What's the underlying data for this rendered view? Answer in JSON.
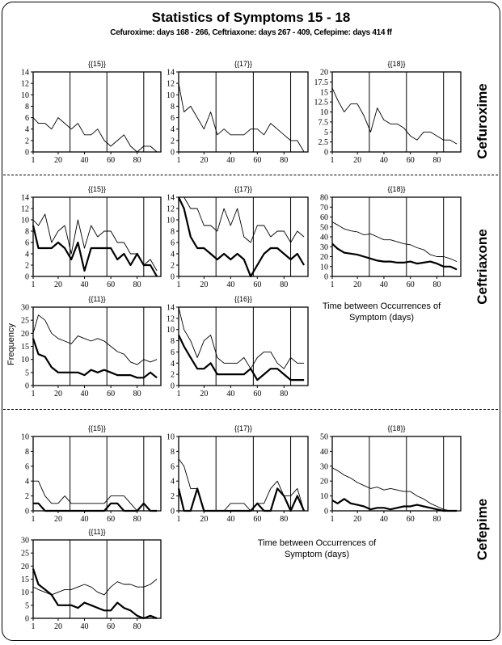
{
  "title": "Statistics of Symptoms 15 - 18",
  "subtitle": "Cefuroxime: days 168 - 266, Ceftriaxone: days 267 - 409, Cefepime: days 414 ff",
  "groups": [
    "Cefuroxime",
    "Ceftriaxone",
    "Cefepime"
  ],
  "ylabel": "Frequency",
  "xlabel_line1": "Time between Occurrences of",
  "xlabel_line2": "Symptom (days)",
  "chart_data": [
    {
      "type": "line",
      "group": "Cefuroxime",
      "title": "{{15}}",
      "xlim": [
        1,
        98
      ],
      "xticks": [
        1,
        20,
        40,
        60,
        80
      ],
      "vlines": [
        29,
        57,
        85
      ],
      "ylim": [
        0,
        14
      ],
      "yticks": [
        "0",
        "2",
        "4",
        "6",
        "8",
        "10",
        "12",
        "14"
      ],
      "x": [
        1,
        5,
        10,
        15,
        20,
        25,
        30,
        35,
        40,
        45,
        50,
        55,
        60,
        65,
        70,
        75,
        80,
        85,
        90,
        95
      ],
      "series": [
        {
          "style": "thin",
          "values": [
            6,
            5,
            5,
            4,
            6,
            5,
            4,
            5,
            3,
            3,
            4,
            2,
            1,
            2,
            3,
            1,
            0,
            1,
            1,
            0
          ]
        }
      ]
    },
    {
      "type": "line",
      "group": "Cefuroxime",
      "title": "{{17}}",
      "xlim": [
        1,
        98
      ],
      "xticks": [
        1,
        20,
        40,
        60,
        80
      ],
      "vlines": [
        29,
        57,
        85
      ],
      "ylim": [
        0,
        14
      ],
      "yticks": [
        "0",
        "2",
        "4",
        "6",
        "8",
        "10",
        "12",
        "14"
      ],
      "x": [
        1,
        5,
        10,
        15,
        20,
        25,
        30,
        35,
        40,
        45,
        50,
        55,
        60,
        65,
        70,
        75,
        80,
        85,
        90,
        95
      ],
      "series": [
        {
          "style": "thin",
          "values": [
            12,
            7,
            8,
            6,
            4,
            7,
            3,
            4,
            3,
            3,
            3,
            4,
            4,
            3,
            5,
            4,
            3,
            2,
            2,
            0
          ]
        }
      ]
    },
    {
      "type": "line",
      "group": "Cefuroxime",
      "title": "{{18}}",
      "xlim": [
        1,
        98
      ],
      "xticks": [
        1,
        20,
        40,
        60,
        80
      ],
      "vlines": [
        29,
        57,
        85
      ],
      "ylim": [
        0,
        20
      ],
      "yticks": [
        "0",
        "2.5",
        "5",
        "7.5",
        "10",
        "12.5",
        "15",
        "17.5",
        "20"
      ],
      "x": [
        1,
        5,
        10,
        15,
        20,
        25,
        30,
        35,
        40,
        45,
        50,
        55,
        60,
        65,
        70,
        75,
        80,
        85,
        90,
        95
      ],
      "series": [
        {
          "style": "thin",
          "values": [
            16,
            13,
            10,
            12,
            12,
            9,
            5,
            11,
            8,
            7,
            7,
            6,
            4,
            3,
            5,
            5,
            4,
            3,
            3,
            2
          ]
        }
      ]
    },
    {
      "type": "line",
      "group": "Ceftriaxone",
      "title": "{{15}}",
      "xlim": [
        1,
        98
      ],
      "xticks": [
        1,
        20,
        40,
        60,
        80
      ],
      "vlines": [
        29,
        57,
        85
      ],
      "ylim": [
        0,
        14
      ],
      "yticks": [
        "0",
        "2",
        "4",
        "6",
        "8",
        "10",
        "12",
        "14"
      ],
      "x": [
        1,
        5,
        10,
        15,
        20,
        25,
        30,
        35,
        40,
        45,
        50,
        55,
        60,
        65,
        70,
        75,
        80,
        85,
        90,
        95
      ],
      "series": [
        {
          "style": "thin",
          "values": [
            10,
            9,
            11,
            6,
            8,
            9,
            4,
            10,
            5,
            9,
            7,
            8,
            8,
            6,
            6,
            4,
            4,
            2,
            3,
            1
          ]
        },
        {
          "style": "thick",
          "values": [
            9,
            5,
            5,
            5,
            6,
            5,
            3,
            6,
            1,
            5,
            5,
            5,
            5,
            3,
            4,
            2,
            4,
            2,
            2,
            0
          ]
        }
      ]
    },
    {
      "type": "line",
      "group": "Ceftriaxone",
      "title": "{{17}}",
      "xlim": [
        1,
        98
      ],
      "xticks": [
        1,
        20,
        40,
        60,
        80
      ],
      "vlines": [
        29,
        57,
        85
      ],
      "ylim": [
        0,
        14
      ],
      "yticks": [
        "0",
        "2",
        "4",
        "6",
        "8",
        "10",
        "12",
        "14"
      ],
      "x": [
        1,
        5,
        10,
        15,
        20,
        25,
        30,
        35,
        40,
        45,
        50,
        55,
        60,
        65,
        70,
        75,
        80,
        85,
        90,
        95
      ],
      "series": [
        {
          "style": "thin",
          "values": [
            14,
            14,
            12,
            12,
            9,
            9,
            8,
            12,
            9,
            12,
            7,
            6,
            9,
            9,
            7,
            8,
            8,
            6,
            8,
            7
          ]
        },
        {
          "style": "thick",
          "values": [
            14,
            12,
            7,
            5,
            5,
            4,
            3,
            4,
            3,
            4,
            3,
            0,
            2,
            4,
            5,
            5,
            4,
            3,
            4,
            2
          ]
        }
      ]
    },
    {
      "type": "line",
      "group": "Ceftriaxone",
      "title": "{{18}}",
      "xlim": [
        1,
        98
      ],
      "xticks": [
        1,
        20,
        40,
        60,
        80
      ],
      "vlines": [
        29,
        57,
        85
      ],
      "ylim": [
        0,
        80
      ],
      "yticks": [
        "0",
        "10",
        "20",
        "30",
        "40",
        "50",
        "60",
        "70",
        "80"
      ],
      "x": [
        1,
        5,
        10,
        15,
        20,
        25,
        30,
        35,
        40,
        45,
        50,
        55,
        60,
        65,
        70,
        75,
        80,
        85,
        90,
        95
      ],
      "series": [
        {
          "style": "thin",
          "values": [
            55,
            52,
            48,
            46,
            45,
            42,
            43,
            40,
            37,
            37,
            35,
            33,
            32,
            29,
            27,
            22,
            20,
            20,
            18,
            15
          ]
        },
        {
          "style": "thick",
          "values": [
            33,
            28,
            24,
            23,
            22,
            20,
            18,
            16,
            15,
            15,
            14,
            14,
            15,
            13,
            14,
            15,
            13,
            10,
            10,
            7
          ]
        }
      ]
    },
    {
      "type": "line",
      "group": "Ceftriaxone",
      "title": "{{11}}",
      "xlim": [
        1,
        98
      ],
      "xticks": [
        1,
        20,
        40,
        60,
        80
      ],
      "vlines": [
        29,
        57,
        85
      ],
      "ylim": [
        0,
        30
      ],
      "yticks": [
        "0",
        "5",
        "10",
        "15",
        "20",
        "25",
        "30"
      ],
      "x": [
        1,
        5,
        10,
        15,
        20,
        25,
        30,
        35,
        40,
        45,
        50,
        55,
        60,
        65,
        70,
        75,
        80,
        85,
        90,
        95
      ],
      "series": [
        {
          "style": "thin",
          "values": [
            20,
            27,
            25,
            20,
            18,
            17,
            16,
            19,
            18,
            17,
            18,
            17,
            15,
            13,
            12,
            9,
            8,
            10,
            9,
            10
          ]
        },
        {
          "style": "thick",
          "values": [
            18,
            12,
            11,
            7,
            5,
            5,
            5,
            5,
            4,
            6,
            5,
            6,
            5,
            4,
            4,
            4,
            3,
            3,
            5,
            3
          ]
        }
      ]
    },
    {
      "type": "line",
      "group": "Ceftriaxone",
      "title": "{{16}}",
      "xlim": [
        1,
        98
      ],
      "xticks": [
        1,
        20,
        40,
        60,
        80
      ],
      "vlines": [
        29,
        57,
        85
      ],
      "ylim": [
        0,
        14
      ],
      "yticks": [
        "0",
        "2",
        "4",
        "6",
        "8",
        "10",
        "12",
        "14"
      ],
      "x": [
        1,
        5,
        10,
        15,
        20,
        25,
        30,
        35,
        40,
        45,
        50,
        55,
        60,
        65,
        70,
        75,
        80,
        85,
        90,
        95
      ],
      "series": [
        {
          "style": "thin",
          "values": [
            14,
            10,
            8,
            5,
            8,
            9,
            5,
            4,
            4,
            4,
            5,
            3,
            5,
            6,
            6,
            4,
            3,
            5,
            4,
            4
          ]
        },
        {
          "style": "thick",
          "values": [
            9,
            7,
            5,
            3,
            3,
            4,
            2,
            2,
            2,
            2,
            2,
            3,
            1,
            2,
            3,
            3,
            2,
            1,
            1,
            1
          ]
        }
      ]
    },
    {
      "type": "line",
      "group": "Cefepime",
      "title": "{{15}}",
      "xlim": [
        1,
        98
      ],
      "xticks": [
        1,
        20,
        40,
        60,
        80
      ],
      "vlines": [
        29,
        57,
        85
      ],
      "ylim": [
        0,
        10
      ],
      "yticks": [
        "0",
        "2",
        "4",
        "6",
        "8",
        "10"
      ],
      "x": [
        1,
        5,
        10,
        15,
        20,
        25,
        30,
        35,
        40,
        45,
        50,
        55,
        60,
        65,
        70,
        75,
        80,
        85,
        90,
        95
      ],
      "series": [
        {
          "style": "thin",
          "values": [
            4,
            4,
            2,
            1,
            1,
            2,
            1,
            1,
            1,
            1,
            1,
            1,
            2,
            2,
            2,
            1,
            0,
            0,
            0,
            0
          ]
        },
        {
          "style": "thick",
          "values": [
            1,
            1,
            0,
            0,
            0,
            0,
            0,
            0,
            0,
            0,
            0,
            0,
            1,
            1,
            0,
            0,
            0,
            1,
            0,
            0
          ]
        }
      ]
    },
    {
      "type": "line",
      "group": "Cefepime",
      "title": "{{17}}",
      "xlim": [
        1,
        98
      ],
      "xticks": [
        1,
        20,
        40,
        60,
        80
      ],
      "vlines": [
        29,
        57,
        85
      ],
      "ylim": [
        0,
        10
      ],
      "yticks": [
        "0",
        "2",
        "4",
        "6",
        "8",
        "10"
      ],
      "x": [
        1,
        5,
        10,
        15,
        20,
        25,
        30,
        35,
        40,
        45,
        50,
        55,
        60,
        65,
        70,
        75,
        80,
        85,
        90,
        95
      ],
      "series": [
        {
          "style": "thin",
          "values": [
            7,
            6,
            3,
            3,
            0,
            0,
            0,
            0,
            1,
            1,
            1,
            0,
            1,
            1,
            3,
            4,
            2,
            2,
            3,
            0
          ]
        },
        {
          "style": "thick",
          "values": [
            3,
            0,
            0,
            3,
            0,
            0,
            0,
            0,
            0,
            0,
            0,
            0,
            1,
            0,
            0,
            3,
            2,
            0,
            2,
            0
          ]
        }
      ]
    },
    {
      "type": "line",
      "group": "Cefepime",
      "title": "{{18}}",
      "xlim": [
        1,
        98
      ],
      "xticks": [
        1,
        20,
        40,
        60,
        80
      ],
      "vlines": [
        29,
        57,
        85
      ],
      "ylim": [
        0,
        50
      ],
      "yticks": [
        "0",
        "10",
        "20",
        "30",
        "40",
        "50"
      ],
      "x": [
        1,
        5,
        10,
        15,
        20,
        25,
        30,
        35,
        40,
        45,
        50,
        55,
        60,
        65,
        70,
        75,
        80,
        85,
        90,
        95
      ],
      "series": [
        {
          "style": "thin",
          "values": [
            29,
            27,
            24,
            22,
            19,
            17,
            15,
            16,
            14,
            15,
            14,
            13,
            13,
            10,
            8,
            5,
            3,
            1,
            0,
            0
          ]
        },
        {
          "style": "thick",
          "values": [
            7,
            5,
            8,
            5,
            4,
            3,
            1,
            2,
            2,
            1,
            2,
            3,
            3,
            4,
            3,
            2,
            1,
            0,
            0,
            0
          ]
        }
      ]
    },
    {
      "type": "line",
      "group": "Cefepime",
      "title": "{{11}}",
      "xlim": [
        1,
        98
      ],
      "xticks": [
        1,
        20,
        40,
        60,
        80
      ],
      "vlines": [
        29,
        57,
        85
      ],
      "ylim": [
        0,
        30
      ],
      "yticks": [
        "0",
        "5",
        "10",
        "15",
        "20",
        "25",
        "30"
      ],
      "x": [
        1,
        5,
        10,
        15,
        20,
        25,
        30,
        35,
        40,
        45,
        50,
        55,
        60,
        65,
        70,
        75,
        80,
        85,
        90,
        95
      ],
      "series": [
        {
          "style": "thin",
          "values": [
            12,
            11,
            10,
            9,
            10,
            11,
            11,
            12,
            13,
            12,
            10,
            9,
            12,
            14,
            13,
            13,
            12,
            12,
            13,
            15
          ]
        },
        {
          "style": "thick",
          "values": [
            19,
            13,
            11,
            9,
            5,
            5,
            5,
            4,
            6,
            5,
            4,
            3,
            3,
            6,
            4,
            3,
            1,
            0,
            1,
            0
          ]
        }
      ]
    }
  ]
}
